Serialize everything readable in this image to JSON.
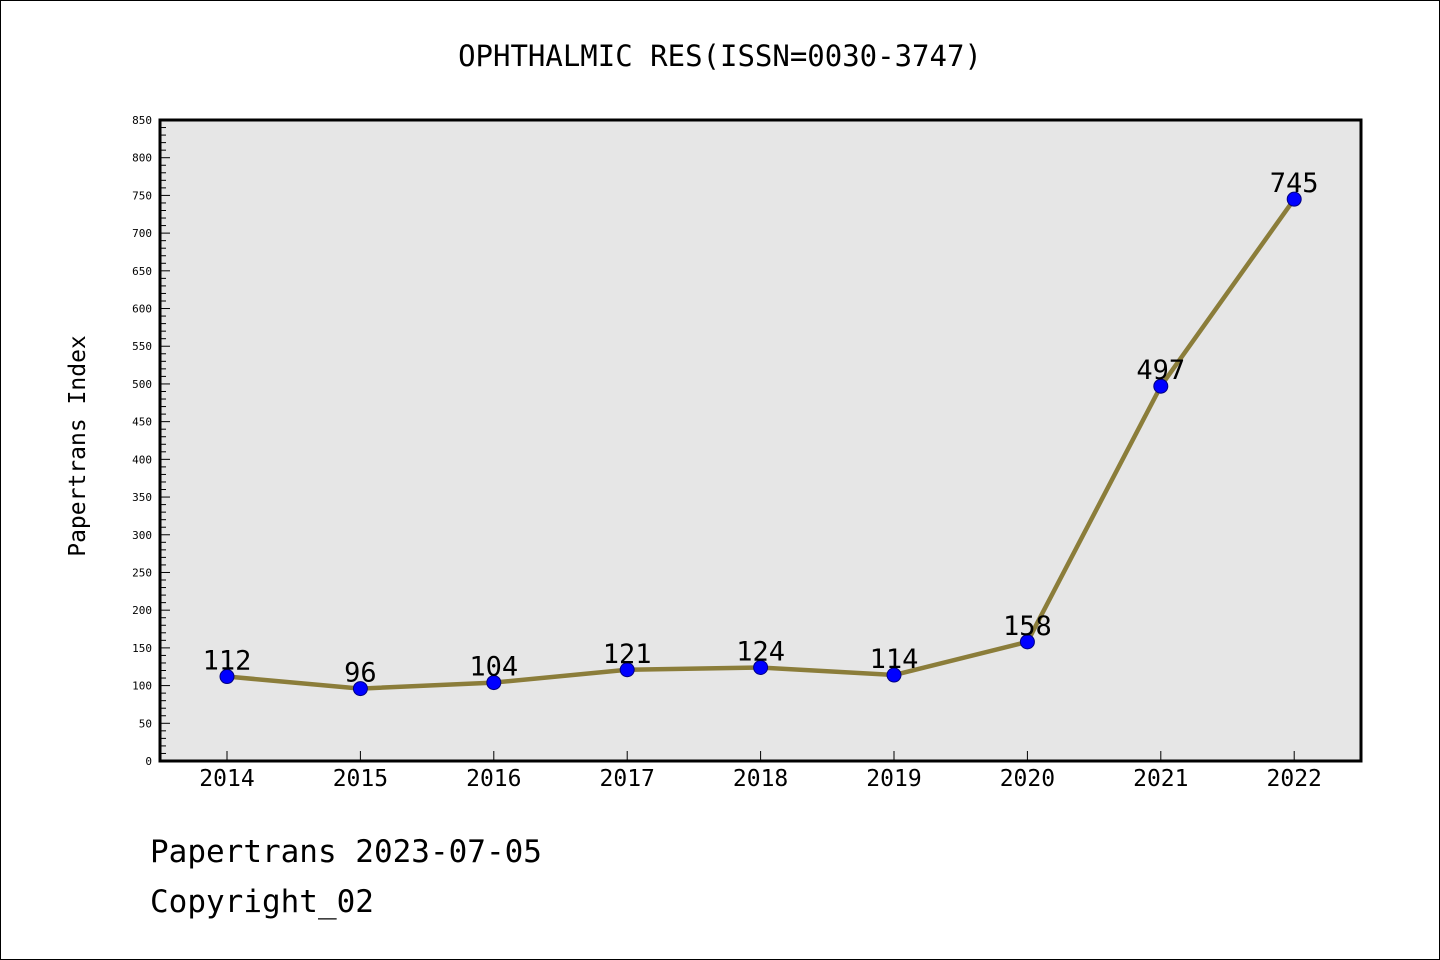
{
  "chart_data": {
    "type": "line",
    "title": "OPHTHALMIC RES(ISSN=0030-3747)",
    "xlabel": "",
    "ylabel": "Papertrans Index",
    "categories": [
      "2014",
      "2015",
      "2016",
      "2017",
      "2018",
      "2019",
      "2020",
      "2021",
      "2022"
    ],
    "series": [
      {
        "values": [
          112,
          96,
          104,
          121,
          124,
          114,
          158,
          497,
          745
        ]
      }
    ],
    "ylim": [
      0,
      850
    ],
    "ytick_step": 50,
    "yminor_step": 10,
    "yticks": [
      "0",
      "50",
      "100",
      "150",
      "200",
      "250",
      "300",
      "350",
      "400",
      "450",
      "500",
      "550",
      "600",
      "650",
      "700",
      "750",
      "800",
      "850"
    ],
    "data_labels": [
      "112",
      "96",
      "104",
      "121",
      "124",
      "114",
      "158",
      "497",
      "745"
    ],
    "grid": false,
    "legend": "none",
    "colors": {
      "plot_background": "#e6e6e6",
      "line": "#8b7d3a",
      "marker": "#0000ff",
      "marker_edge": "#000080"
    }
  },
  "footer": {
    "source": "Papertrans 2023-07-05",
    "copyright": "Copyright_02"
  }
}
